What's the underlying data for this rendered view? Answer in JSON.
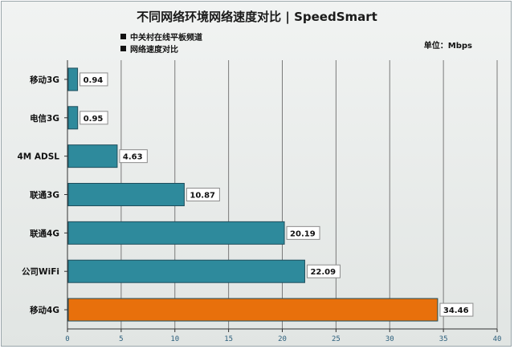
{
  "title": "不同网络环境网络速度对比 | SpeedSmart",
  "legend": [
    "中关村在线平板频道",
    "网络速度对比"
  ],
  "unit_label": "单位：Mbps",
  "colors": {
    "bar": "#2e8a9c",
    "highlight": "#e8700c",
    "bar_stroke": "#1f4e5c",
    "grid": "#7a7a7a",
    "axis_tick": "#2c5f7c"
  },
  "chart_data": {
    "type": "bar",
    "orientation": "horizontal",
    "title": "不同网络环境网络速度对比 | SpeedSmart",
    "categories": [
      "移动3G",
      "电信3G",
      "4M ADSL",
      "联通3G",
      "联通4G",
      "公司WiFi",
      "移动4G"
    ],
    "values": [
      0.94,
      0.95,
      4.63,
      10.87,
      20.19,
      22.09,
      34.46
    ],
    "value_labels": [
      "0.94",
      "0.95",
      "4.63",
      "10.87",
      "20.19",
      "22.09",
      "34.46"
    ],
    "highlight_index": 6,
    "xlim": [
      0,
      40
    ],
    "xticks": [
      0,
      5,
      10,
      15,
      20,
      25,
      30,
      35,
      40
    ],
    "grid": "vertical",
    "unit": "Mbps"
  }
}
